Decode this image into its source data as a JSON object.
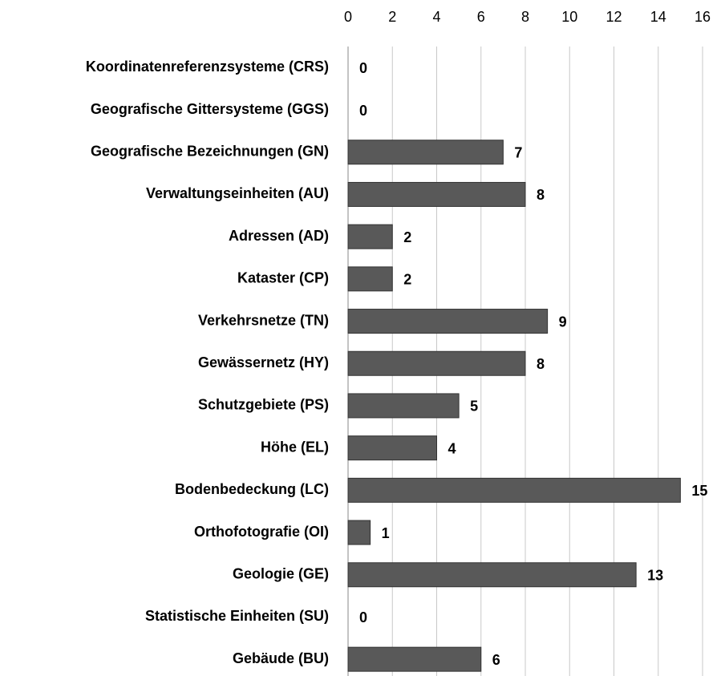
{
  "chart_data": {
    "type": "bar",
    "orientation": "horizontal",
    "axis_position": "top",
    "categories": [
      "Koordinatenreferenzsysteme (CRS)",
      "Geografische Gittersysteme (GGS)",
      "Geografische Bezeichnungen (GN)",
      "Verwaltungseinheiten (AU)",
      "Adressen (AD)",
      "Kataster (CP)",
      "Verkehrsnetze (TN)",
      "Gewässernetz (HY)",
      "Schutzgebiete (PS)",
      "Höhe (EL)",
      "Bodenbedeckung (LC)",
      "Orthofotografie (OI)",
      "Geologie (GE)",
      "Statistische Einheiten (SU)",
      "Gebäude (BU)"
    ],
    "values": [
      0,
      0,
      7,
      8,
      2,
      2,
      9,
      8,
      5,
      4,
      15,
      1,
      13,
      0,
      6
    ],
    "color": "#595959",
    "xlim": [
      0,
      16
    ],
    "xticks": [
      0,
      2,
      4,
      6,
      8,
      10,
      12,
      14,
      16
    ],
    "grid": true,
    "data_labels": true
  }
}
